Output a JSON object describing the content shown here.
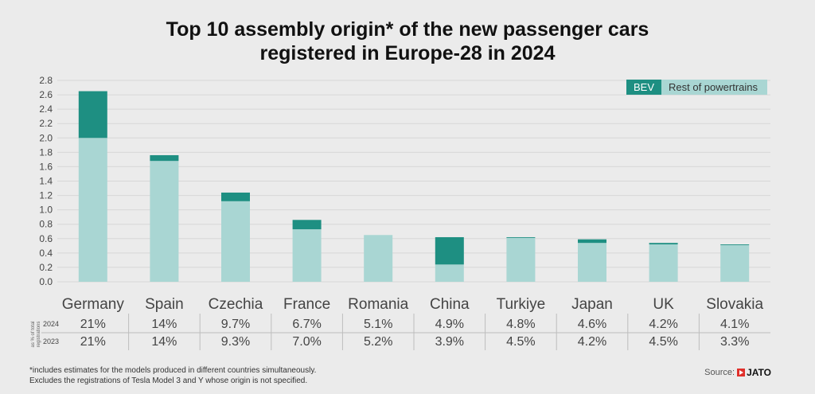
{
  "title_line1": "Top 10 assembly origin* of the new passenger cars",
  "title_line2": "registered in Europe-28 in 2024",
  "legend": {
    "bev": "BEV",
    "rest": "Rest of powertrains"
  },
  "table": {
    "side_label_line1": "as % of total",
    "side_label_line2": "registrations",
    "row_labels": [
      "2024",
      "2023"
    ]
  },
  "footnote_line1": "*includes estimates for the models produced in different countries simultaneously.",
  "footnote_line2": "Excludes the registrations of Tesla Model 3 and Y whose origin is not specified.",
  "source_label": "Source:",
  "source_brand": "JATO",
  "colors": {
    "bev": "#1e8f82",
    "rest": "#a9d6d3",
    "grid": "#d7d7d7"
  },
  "chart_data": {
    "type": "bar",
    "stacked": true,
    "categories": [
      "Germany",
      "Spain",
      "Czechia",
      "France",
      "Romania",
      "China",
      "Turkiye",
      "Japan",
      "UK",
      "Slovakia"
    ],
    "series": [
      {
        "name": "Rest of powertrains",
        "values": [
          2.0,
          1.68,
          1.12,
          0.73,
          0.65,
          0.24,
          0.61,
          0.54,
          0.52,
          0.51
        ]
      },
      {
        "name": "BEV",
        "values": [
          0.65,
          0.08,
          0.12,
          0.13,
          0.0,
          0.38,
          0.01,
          0.05,
          0.02,
          0.01
        ]
      }
    ],
    "ylim": [
      0,
      2.8
    ],
    "yticks": [
      "0.0",
      "0.2",
      "0.4",
      "0.6",
      "0.8",
      "1.0",
      "1.2",
      "1.4",
      "1.6",
      "1.8",
      "2.0",
      "2.2",
      "2.4",
      "2.6",
      "2.8"
    ],
    "share_2024": [
      "21%",
      "14%",
      "9.7%",
      "6.7%",
      "5.1%",
      "4.9%",
      "4.8%",
      "4.6%",
      "4.2%",
      "4.1%"
    ],
    "share_2023": [
      "21%",
      "14%",
      "9.3%",
      "7.0%",
      "5.2%",
      "3.9%",
      "4.5%",
      "4.2%",
      "4.5%",
      "3.3%"
    ],
    "grid": true,
    "legend_position": "top-right"
  }
}
